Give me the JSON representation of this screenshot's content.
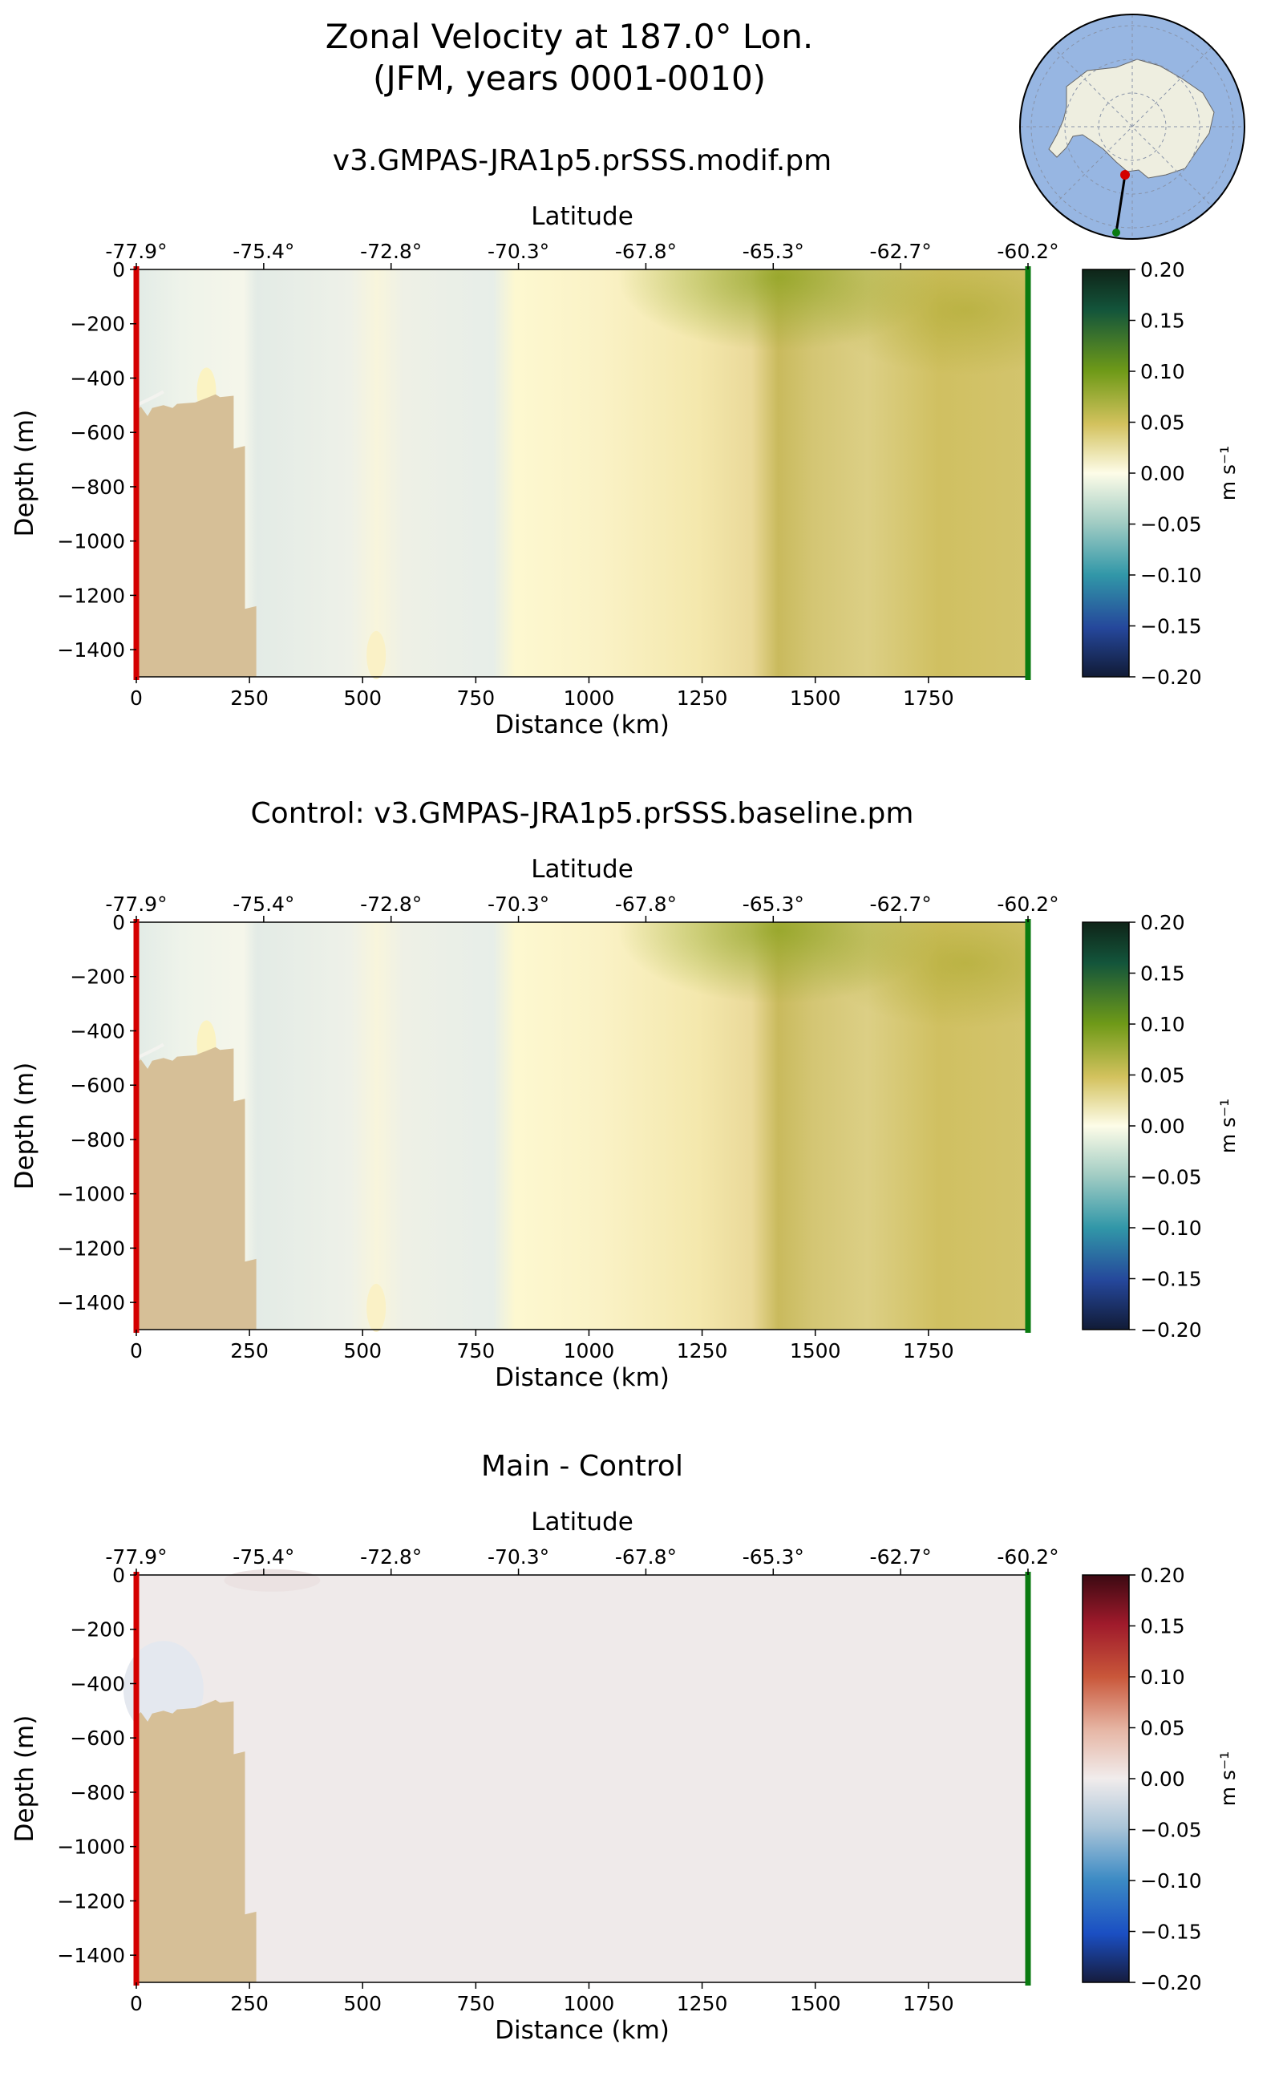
{
  "figure": {
    "title_line1": "Zonal Velocity at 187.0° Lon.",
    "title_line2": "(JFM, years 0001-0010)"
  },
  "colors": {
    "land": "#d6bf97",
    "start_marker": "#d40000",
    "end_marker": "#0a7a10",
    "inset_ocean": "#97b6e2",
    "inset_land": "#eeeee0"
  },
  "chart_data": [
    {
      "type": "heatmap",
      "id": "main",
      "title": "v3.GMPAS-JRA1p5.prSSS.modif.pm",
      "xlabel": "Distance (km)",
      "ylabel": "Depth (m)",
      "secondary_xlabel": "Latitude",
      "xlim": [
        0,
        1970
      ],
      "ylim": [
        -1500,
        0
      ],
      "x_ticks": [
        "0",
        "250",
        "500",
        "750",
        "1000",
        "1250",
        "1500",
        "1750"
      ],
      "y_ticks": [
        "0",
        "−200",
        "−400",
        "−600",
        "−800",
        "−1000",
        "−1200",
        "−1400"
      ],
      "lat_ticks": [
        "-77.9°",
        "-75.4°",
        "-72.8°",
        "-70.3°",
        "-67.8°",
        "-65.3°",
        "-62.7°",
        "-60.2°"
      ],
      "colormap": "cmocean delta",
      "colorbar": {
        "label": "m s⁻¹",
        "min": -0.2,
        "max": 0.2,
        "ticks": [
          "0.20",
          "0.15",
          "0.10",
          "0.05",
          "0.00",
          "−0.05",
          "−0.10",
          "−0.15",
          "−0.20"
        ]
      },
      "section_profile": {
        "distance_km": [
          0,
          100,
          200,
          260,
          300,
          550,
          760,
          840,
          1000,
          1250,
          1350,
          1420,
          1500,
          1700,
          1970
        ],
        "velocity_ms": [
          -0.02,
          -0.01,
          -0.005,
          -0.02,
          -0.01,
          -0.005,
          -0.01,
          0.01,
          0.01,
          0.03,
          0.045,
          0.07,
          0.05,
          0.06,
          0.05
        ]
      }
    },
    {
      "type": "heatmap",
      "id": "control",
      "title": "Control: v3.GMPAS-JRA1p5.prSSS.baseline.pm",
      "xlabel": "Distance (km)",
      "ylabel": "Depth (m)",
      "secondary_xlabel": "Latitude",
      "xlim": [
        0,
        1970
      ],
      "ylim": [
        -1500,
        0
      ],
      "x_ticks": [
        "0",
        "250",
        "500",
        "750",
        "1000",
        "1250",
        "1500",
        "1750"
      ],
      "y_ticks": [
        "0",
        "−200",
        "−400",
        "−600",
        "−800",
        "−1000",
        "−1200",
        "−1400"
      ],
      "lat_ticks": [
        "-77.9°",
        "-75.4°",
        "-72.8°",
        "-70.3°",
        "-67.8°",
        "-65.3°",
        "-62.7°",
        "-60.2°"
      ],
      "colormap": "cmocean delta",
      "colorbar": {
        "label": "m s⁻¹",
        "min": -0.2,
        "max": 0.2,
        "ticks": [
          "0.20",
          "0.15",
          "0.10",
          "0.05",
          "0.00",
          "−0.05",
          "−0.10",
          "−0.15",
          "−0.20"
        ]
      },
      "section_profile": {
        "distance_km": [
          0,
          100,
          200,
          260,
          300,
          550,
          760,
          840,
          1000,
          1250,
          1350,
          1420,
          1500,
          1700,
          1970
        ],
        "velocity_ms": [
          -0.02,
          -0.01,
          -0.005,
          -0.02,
          -0.01,
          -0.005,
          -0.01,
          0.01,
          0.01,
          0.03,
          0.045,
          0.07,
          0.05,
          0.06,
          0.05
        ]
      }
    },
    {
      "type": "heatmap",
      "id": "difference",
      "title": "Main - Control",
      "xlabel": "Distance (km)",
      "ylabel": "Depth (m)",
      "secondary_xlabel": "Latitude",
      "xlim": [
        0,
        1970
      ],
      "ylim": [
        -1500,
        0
      ],
      "x_ticks": [
        "0",
        "250",
        "500",
        "750",
        "1000",
        "1250",
        "1500",
        "1750"
      ],
      "y_ticks": [
        "0",
        "−200",
        "−400",
        "−600",
        "−800",
        "−1000",
        "−1200",
        "−1400"
      ],
      "lat_ticks": [
        "-77.9°",
        "-75.4°",
        "-72.8°",
        "-70.3°",
        "-67.8°",
        "-65.3°",
        "-62.7°",
        "-60.2°"
      ],
      "colormap": "cmocean balance",
      "colorbar": {
        "label": "m s⁻¹",
        "min": -0.2,
        "max": 0.2,
        "ticks": [
          "0.20",
          "0.15",
          "0.10",
          "0.05",
          "0.00",
          "−0.05",
          "−0.10",
          "−0.15",
          "−0.20"
        ]
      },
      "section_profile": {
        "distance_km": [
          0,
          1970
        ],
        "velocity_ms": [
          0.0,
          0.0
        ]
      }
    }
  ]
}
